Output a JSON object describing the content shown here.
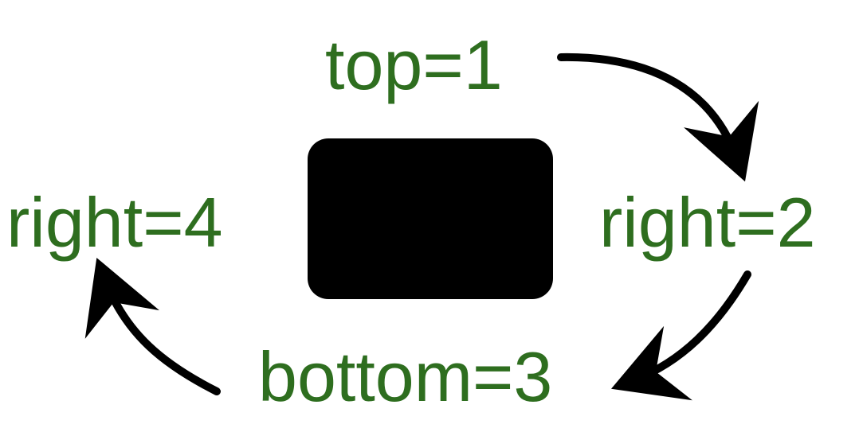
{
  "labels": {
    "top": "top=1",
    "right": "right=2",
    "bottom": "bottom=3",
    "left": "right=4"
  },
  "colors": {
    "label": "#2e6e1f",
    "box": "#000000",
    "arrow": "#000000"
  }
}
